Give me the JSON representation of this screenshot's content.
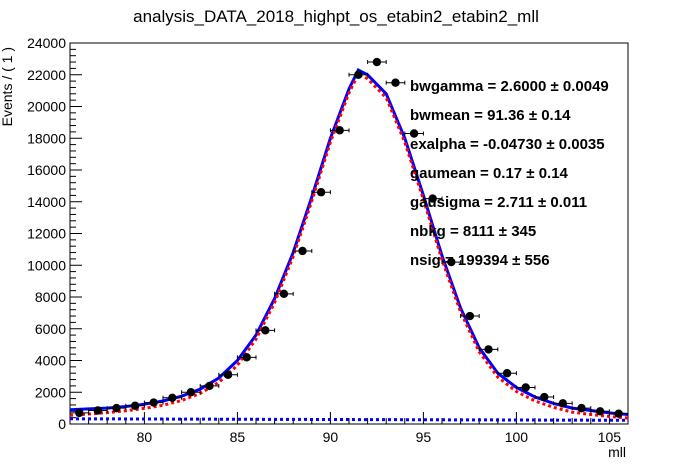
{
  "chart_data": {
    "type": "scatter",
    "title": "analysis_DATA_2018_highpt_os_etabin2_etabin2_mll",
    "xlabel": "mll",
    "ylabel": "Events / ( 1 )",
    "xlim": [
      76,
      106
    ],
    "ylim": [
      0,
      24000
    ],
    "x_ticks": [
      80,
      85,
      90,
      95,
      100,
      105
    ],
    "y_ticks": [
      0,
      2000,
      4000,
      6000,
      8000,
      10000,
      12000,
      14000,
      16000,
      18000,
      20000,
      22000,
      24000
    ],
    "grid": false,
    "series": [
      {
        "kind": "data-points",
        "x_err": 0.5,
        "x": [
          76.5,
          77.5,
          78.5,
          79.5,
          80.5,
          81.5,
          82.5,
          83.5,
          84.5,
          85.5,
          86.5,
          87.5,
          88.5,
          89.5,
          90.5,
          91.5,
          92.5,
          93.5,
          94.5,
          95.5,
          96.5,
          97.5,
          98.5,
          99.5,
          100.5,
          101.5,
          102.5,
          103.5,
          104.5,
          105.5
        ],
        "y": [
          700,
          850,
          1000,
          1150,
          1350,
          1650,
          2000,
          2400,
          3100,
          4200,
          5900,
          8200,
          10900,
          14600,
          18500,
          22000,
          22800,
          21500,
          18300,
          14200,
          10200,
          6800,
          4700,
          3200,
          2300,
          1700,
          1300,
          1000,
          800,
          650
        ]
      },
      {
        "kind": "total-fit",
        "color": "#0000ff",
        "x": [
          76,
          77,
          78,
          79,
          80,
          81,
          82,
          83,
          84,
          85,
          86,
          87,
          88,
          89,
          90,
          91,
          91.5,
          92,
          93,
          94,
          95,
          96,
          97,
          98,
          99,
          100,
          101,
          102,
          103,
          104,
          105,
          106
        ],
        "y": [
          900,
          950,
          1000,
          1100,
          1250,
          1450,
          1750,
          2200,
          2900,
          4000,
          5600,
          7900,
          10800,
          14300,
          18000,
          21100,
          22300,
          22000,
          20800,
          18000,
          14400,
          10600,
          7300,
          4800,
          3200,
          2300,
          1700,
          1300,
          1000,
          850,
          700,
          600
        ]
      },
      {
        "kind": "signal-component",
        "color": "#ff0000",
        "x": [
          76,
          77,
          78,
          79,
          80,
          81,
          82,
          83,
          84,
          85,
          86,
          87,
          88,
          89,
          90,
          91,
          91.5,
          92,
          93,
          94,
          95,
          96,
          97,
          98,
          99,
          100,
          101,
          102,
          103,
          104,
          105,
          106
        ],
        "y": [
          550,
          630,
          720,
          830,
          980,
          1180,
          1480,
          1930,
          2620,
          3700,
          5350,
          7650,
          10550,
          14050,
          17750,
          20850,
          22050,
          21750,
          20550,
          17750,
          14150,
          10350,
          7050,
          4550,
          2950,
          2050,
          1450,
          1050,
          750,
          600,
          470,
          380
        ]
      },
      {
        "kind": "background-component",
        "color": "#0000ff",
        "x": [
          76,
          106
        ],
        "y": [
          330,
          230
        ]
      }
    ],
    "parameters": [
      {
        "name": "bwgamma",
        "value": "2.6000",
        "error": "0.0049",
        "text": "bwgamma =  2.6000   ± 0.0049"
      },
      {
        "name": "bwmean",
        "value": "91.36",
        "error": "0.14",
        "text": "bwmean =  91.36   ± 0.14"
      },
      {
        "name": "exalpha",
        "value": "-0.04730",
        "error": "0.0035",
        "text": "exalpha = -0.04730   ± 0.0035"
      },
      {
        "name": "gaumean",
        "value": "0.17",
        "error": "0.14",
        "text": "gaumean =  0.17   ± 0.14"
      },
      {
        "name": "gausigma",
        "value": "2.711",
        "error": "0.011",
        "text": "gausigma =  2.711   ± 0.011"
      },
      {
        "name": "nbkg",
        "value": "8111",
        "error": "345",
        "text": "nbkg =  8111  ± 345"
      },
      {
        "name": "nsig",
        "value": "199394",
        "error": "556",
        "text": "nsig =  199394   ± 556"
      }
    ]
  }
}
